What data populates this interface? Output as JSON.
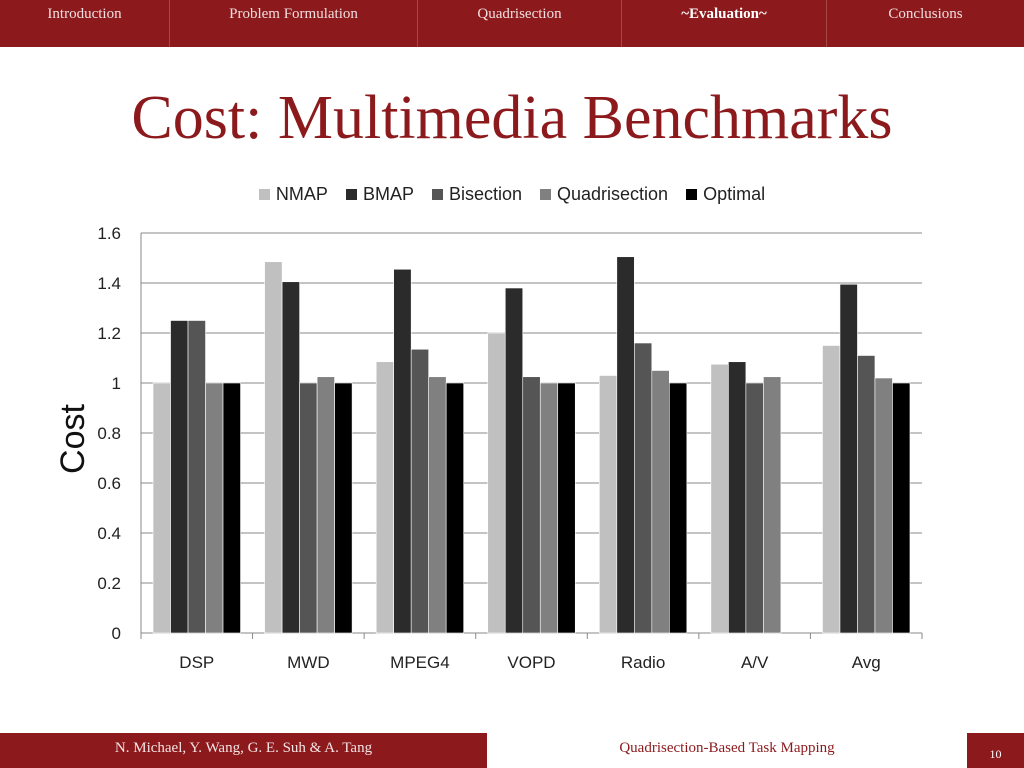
{
  "nav": {
    "tabs": [
      {
        "label": "Introduction",
        "active": false
      },
      {
        "label": "Problem Formulation",
        "active": false
      },
      {
        "label": "Quadrisection",
        "active": false
      },
      {
        "label": "~Evaluation~",
        "active": true
      },
      {
        "label": "Conclusions",
        "active": false
      }
    ],
    "color": "#8c1a1d"
  },
  "slide": {
    "title": "Cost: Multimedia Benchmarks"
  },
  "chart_data": {
    "type": "bar",
    "title": "",
    "xlabel": "",
    "ylabel": "Cost",
    "ylim": [
      0,
      1.6
    ],
    "yticks": [
      "0",
      "0.2",
      "0.4",
      "0.6",
      "0.8",
      "1",
      "1.2",
      "1.4",
      "1.6"
    ],
    "grid": true,
    "legend_position": "top-center",
    "categories": [
      "DSP",
      "MWD",
      "MPEG4",
      "VOPD",
      "Radio",
      "A/V",
      "Avg"
    ],
    "series": [
      {
        "name": "NMAP",
        "color": "#c0c0c0",
        "values": [
          1.0,
          1.485,
          1.085,
          1.2,
          1.03,
          1.075,
          1.15
        ]
      },
      {
        "name": "BMAP",
        "color": "#2b2b2b",
        "values": [
          1.25,
          1.405,
          1.455,
          1.38,
          1.505,
          1.085,
          1.395
        ]
      },
      {
        "name": "Bisection",
        "color": "#555555",
        "values": [
          1.25,
          1.0,
          1.135,
          1.025,
          1.16,
          1.0,
          1.11
        ]
      },
      {
        "name": "Quadrisection",
        "color": "#808080",
        "values": [
          1.0,
          1.025,
          1.025,
          1.0,
          1.05,
          1.025,
          1.02
        ]
      },
      {
        "name": "Optimal",
        "color": "#000000",
        "values": [
          1.0,
          1.0,
          1.0,
          1.0,
          1.0,
          null,
          1.0
        ]
      }
    ]
  },
  "footer": {
    "authors": "N. Michael, Y. Wang, G. E. Suh & A. Tang",
    "talk_title": "Quadrisection-Based Task Mapping",
    "page_number": "10"
  }
}
